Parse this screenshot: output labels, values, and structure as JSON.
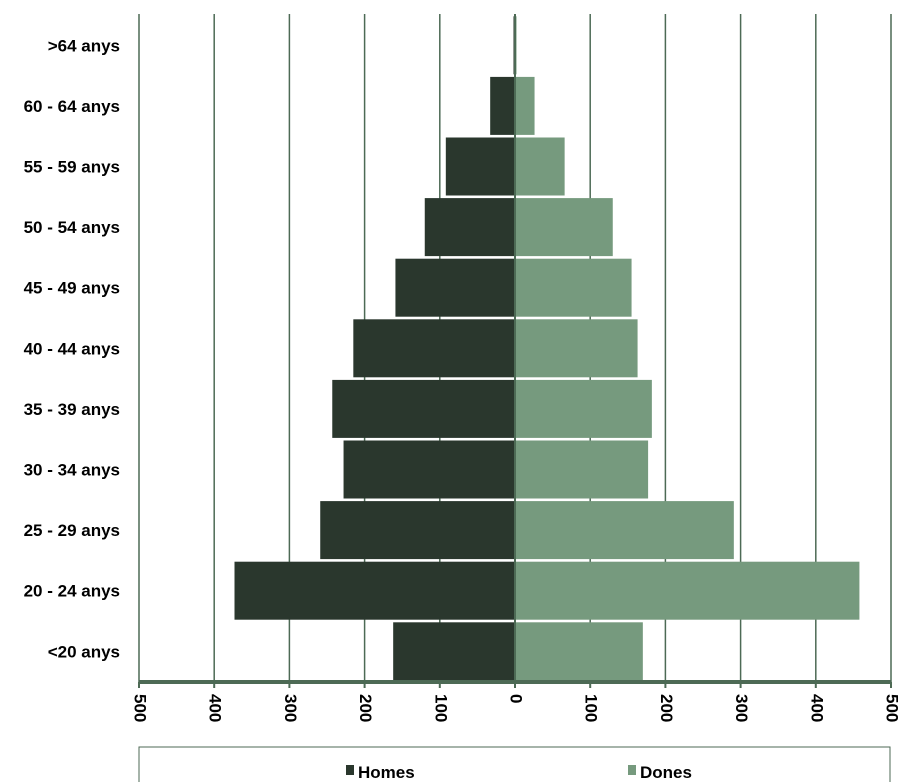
{
  "chart_data": {
    "type": "bar",
    "orientation": "horizontal",
    "subtype": "population-pyramid",
    "categories": [
      "<20 anys",
      "20 - 24 anys",
      "25 - 29 anys",
      "30 - 34 anys",
      "35 - 39 anys",
      "40 - 44 anys",
      "45 - 49 anys",
      "50 - 54 anys",
      "55 - 59 anys",
      "60 - 64 anys",
      ">64 anys"
    ],
    "series": [
      {
        "name": "Homes",
        "color": "#2a372d",
        "values": [
          162,
          373,
          259,
          228,
          243,
          215,
          159,
          120,
          92,
          33,
          2
        ]
      },
      {
        "name": "Dones",
        "color": "#769a7e",
        "values": [
          170,
          458,
          291,
          177,
          182,
          163,
          155,
          130,
          66,
          26,
          2
        ]
      }
    ],
    "xlim": [
      -500,
      500
    ],
    "xticks": [
      -500,
      -400,
      -300,
      -200,
      -100,
      0,
      100,
      200,
      300,
      400,
      500
    ],
    "xtick_labels": [
      "500",
      "400",
      "300",
      "200",
      "100",
      "0",
      "100",
      "200",
      "300",
      "400",
      "500"
    ],
    "grid": "vertical",
    "legend_position": "bottom",
    "axis_color": "#4d6a55"
  }
}
